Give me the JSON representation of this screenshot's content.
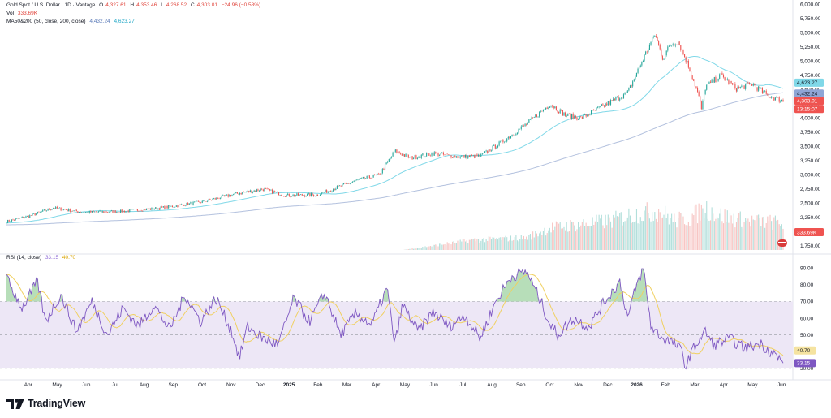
{
  "header": {
    "symbol": "Gold Spot / U.S. Dollar · 1D · Vantage",
    "open_label": "O",
    "open": "4,327.61",
    "high_label": "H",
    "high": "4,353.46",
    "low_label": "L",
    "low": "4,268.52",
    "close_label": "C",
    "close": "4,303.01",
    "change": "−24.96 (−0.58%)",
    "vol_label": "Vol",
    "vol": "333.69K",
    "ma_label": "MA50&200 (50, close, 200, close)",
    "ma50": "4,432.24",
    "ma200": "4,623.27",
    "rsi_label": "RSI (14, close)",
    "rsi": "33.15",
    "rsi_ma": "40.70"
  },
  "brand": {
    "name": "TradingView"
  },
  "colors": {
    "up": "#26a69a",
    "down": "#ef5350",
    "ma50": "#80d8e8",
    "ma200": "#b3c1de",
    "rsi": "#7e57c2",
    "rsi_ma": "#f0d060",
    "rsi_band": "#ede7f6"
  },
  "chart_data": [
    {
      "type": "candlestick",
      "title": "Gold Spot / U.S. Dollar · 1D · Vantage",
      "x_ticks": [
        "Apr",
        "May",
        "Jun",
        "Jul",
        "Aug",
        "Sep",
        "Oct",
        "Nov",
        "Dec",
        "2025",
        "Feb",
        "Mar",
        "Apr",
        "May",
        "Jun",
        "Jul",
        "Aug",
        "Sep",
        "Oct",
        "Nov",
        "Dec",
        "2026",
        "Feb",
        "Mar",
        "Apr",
        "May",
        "Jun"
      ],
      "y_ticks": [
        1750,
        2000,
        2250,
        2500,
        2750,
        3000,
        3250,
        3500,
        3750,
        4000,
        4250,
        4500,
        4750,
        5000,
        5250,
        5500,
        5750,
        6000
      ],
      "y_tick_labels": [
        "1,750.00",
        "2,000.00",
        "2,250.00",
        "2,500.00",
        "2,750.00",
        "3,000.00",
        "3,250.00",
        "3,500.00",
        "3,750.00",
        "4,000.00",
        "4,250.00",
        "4,500.00",
        "4,750.00",
        "5,000.00",
        "5,250.00",
        "5,500.00",
        "5,750.00",
        "6,000.00"
      ],
      "ylim": [
        1650,
        6050
      ],
      "price_path": {
        "t": [
          0,
          0.03,
          0.06,
          0.1,
          0.15,
          0.2,
          0.25,
          0.3,
          0.33,
          0.36,
          0.4,
          0.45,
          0.48,
          0.5,
          0.52,
          0.55,
          0.58,
          0.61,
          0.64,
          0.67,
          0.7,
          0.72,
          0.74,
          0.76,
          0.78,
          0.8,
          0.82,
          0.835,
          0.845,
          0.855,
          0.865,
          0.88,
          0.89,
          0.895,
          0.9,
          0.91,
          0.92,
          0.94,
          0.96,
          0.98,
          1.0
        ],
        "price": [
          2180,
          2280,
          2420,
          2340,
          2360,
          2420,
          2520,
          2680,
          2750,
          2640,
          2650,
          2900,
          3000,
          3420,
          3300,
          3380,
          3320,
          3330,
          3600,
          3900,
          4250,
          4050,
          4000,
          4150,
          4300,
          4450,
          5050,
          5480,
          5050,
          5300,
          5350,
          4850,
          4450,
          4150,
          4550,
          4650,
          4750,
          4520,
          4600,
          4400,
          4303.01
        ]
      },
      "last_price": "4,303.01",
      "countdown": "13:15:07",
      "series": [
        {
          "name": "MA50",
          "last": 4432.24
        },
        {
          "name": "MA200",
          "last": 4623.27
        }
      ]
    },
    {
      "type": "bar",
      "title": "Vol",
      "last": "333.69K",
      "profile": {
        "t": [
          0,
          0.51,
          0.6,
          0.67,
          0.7,
          0.78,
          0.8,
          0.84,
          0.86,
          0.88,
          0.9,
          0.92,
          0.95,
          1.0
        ],
        "level": [
          0,
          0,
          0.2,
          0.25,
          0.45,
          0.6,
          0.7,
          0.8,
          0.6,
          0.65,
          0.85,
          0.7,
          0.6,
          0.55
        ]
      }
    },
    {
      "type": "line",
      "title": "RSI (14, close)",
      "y_ticks": [
        30,
        40,
        50,
        60,
        70,
        80,
        90
      ],
      "y_tick_labels": [
        "30.00",
        "40.00",
        "50.00",
        "60.00",
        "70.00",
        "80.00",
        "90.00"
      ],
      "ylim": [
        27,
        96
      ],
      "bands": [
        30,
        50,
        70
      ],
      "path": {
        "t": [
          0,
          0.02,
          0.04,
          0.05,
          0.07,
          0.09,
          0.11,
          0.13,
          0.15,
          0.17,
          0.19,
          0.21,
          0.23,
          0.25,
          0.27,
          0.29,
          0.3,
          0.31,
          0.33,
          0.35,
          0.37,
          0.39,
          0.41,
          0.43,
          0.45,
          0.47,
          0.49,
          0.5,
          0.51,
          0.53,
          0.55,
          0.57,
          0.59,
          0.61,
          0.63,
          0.65,
          0.67,
          0.69,
          0.7,
          0.71,
          0.73,
          0.75,
          0.77,
          0.79,
          0.8,
          0.81,
          0.82,
          0.83,
          0.845,
          0.86,
          0.87,
          0.875,
          0.88,
          0.89,
          0.9,
          0.91,
          0.93,
          0.95,
          0.97,
          0.99,
          1.0
        ],
        "value": [
          84,
          66,
          82,
          58,
          74,
          52,
          70,
          50,
          66,
          55,
          68,
          53,
          74,
          58,
          72,
          52,
          36,
          55,
          48,
          44,
          72,
          58,
          75,
          50,
          63,
          56,
          78,
          44,
          68,
          52,
          64,
          55,
          62,
          48,
          70,
          85,
          88,
          68,
          56,
          50,
          60,
          55,
          70,
          82,
          60,
          78,
          90,
          55,
          48,
          45,
          40,
          30,
          38,
          46,
          52,
          44,
          48,
          42,
          45,
          38,
          33.15
        ]
      },
      "series": [
        {
          "name": "RSI",
          "last": 33.15
        },
        {
          "name": "RSI MA",
          "last": 40.7
        }
      ]
    }
  ]
}
